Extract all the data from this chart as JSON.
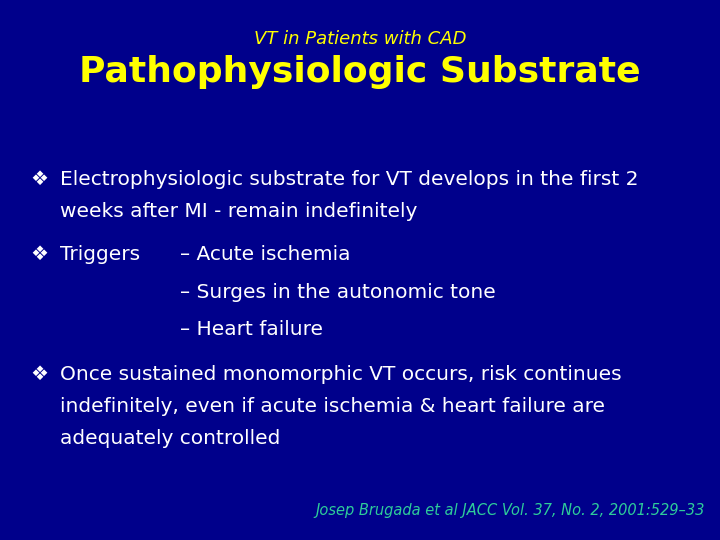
{
  "bg_color": "#00008B",
  "subtitle": "VT in Patients with CAD",
  "title": "Pathophysiologic Substrate",
  "subtitle_color": "#FFFF00",
  "title_color": "#FFFF00",
  "body_color": "#FFFFFF",
  "citation_color": "#2ECC9A",
  "subtitle_fontsize": 13,
  "title_fontsize": 26,
  "body_fontsize": 14.5,
  "citation_fontsize": 10.5,
  "bullet_symbol": "❖",
  "bullet1_line1": "Electrophysiologic substrate for VT develops in the first 2",
  "bullet1_line2": "weeks after MI - remain indefinitely",
  "bullet2_main": "Triggers",
  "bullet2_sub1": "– Acute ischemia",
  "bullet2_sub2": "– Surges in the autonomic tone",
  "bullet2_sub3": "– Heart failure",
  "bullet3_line1": "Once sustained monomorphic VT occurs, risk continues",
  "bullet3_line2": "indefinitely, even if acute ischemia & heart failure are",
  "bullet3_line3": "adequately controlled",
  "citation": "Josep Brugada et al JACC Vol. 37, No. 2, 2001:529–33"
}
